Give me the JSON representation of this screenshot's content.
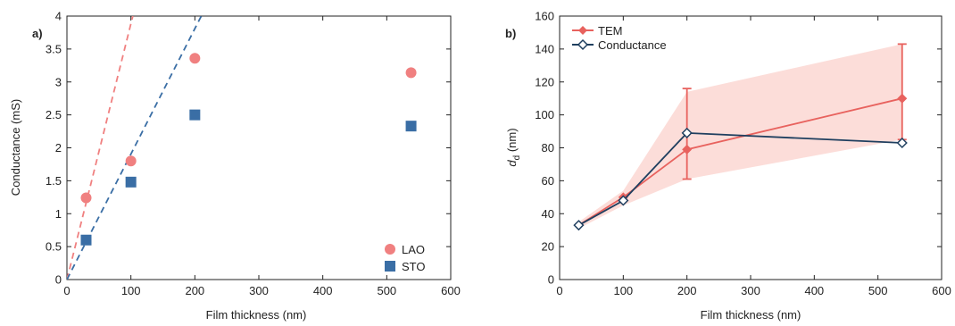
{
  "colors": {
    "lao": "#f08080",
    "sto": "#3a6ea5",
    "tem": "#e8625e",
    "conductance": "#1f3f5f",
    "band": "#fbd5d0"
  },
  "chart_data": [
    {
      "type": "scatter",
      "panel_label": "a)",
      "xlabel": "Film thickness (nm)",
      "ylabel": "Conductance (mS)",
      "xlim": [
        0,
        600
      ],
      "ylim": [
        0,
        4
      ],
      "xticks": [
        0,
        100,
        200,
        300,
        400,
        500,
        600
      ],
      "yticks": [
        0,
        0.5,
        1,
        1.5,
        2,
        2.5,
        3,
        3.5,
        4
      ],
      "ytick_labels": [
        "0",
        "0.5",
        "1",
        "1.5",
        "2",
        "2.5",
        "3",
        "3.5",
        "4"
      ],
      "legend_position": "bottom-right",
      "series": [
        {
          "name": "LAO",
          "marker": "circle",
          "x": [
            30,
            100,
            200,
            538
          ],
          "y": [
            1.24,
            1.8,
            3.36,
            3.14
          ]
        },
        {
          "name": "STO",
          "marker": "square",
          "x": [
            30,
            100,
            200,
            538
          ],
          "y": [
            0.6,
            1.48,
            2.5,
            2.33
          ]
        }
      ],
      "fit_lines": [
        {
          "series": "LAO",
          "style": "dashed",
          "x": [
            0,
            103
          ],
          "y": [
            0,
            4
          ]
        },
        {
          "series": "STO",
          "style": "dashed",
          "x": [
            0,
            210
          ],
          "y": [
            0,
            4
          ]
        }
      ]
    },
    {
      "type": "line",
      "panel_label": "b)",
      "xlabel": "Film thickness (nm)",
      "ylabel_main": "d",
      "ylabel_sub": "d",
      "ylabel_tail": " (nm)",
      "xlim": [
        0,
        600
      ],
      "ylim": [
        0,
        160
      ],
      "xticks": [
        0,
        100,
        200,
        300,
        400,
        500,
        600
      ],
      "yticks": [
        0,
        20,
        40,
        60,
        80,
        100,
        120,
        140,
        160
      ],
      "legend_position": "top-left",
      "series": [
        {
          "name": "TEM",
          "marker": "filled-diamond",
          "x": [
            30,
            100,
            200,
            538
          ],
          "y": [
            33,
            50,
            79,
            110
          ],
          "err_low": [
            33,
            50,
            61,
            85
          ],
          "err_high": [
            33,
            50,
            116,
            143
          ]
        },
        {
          "name": "Conductance",
          "marker": "open-diamond",
          "x": [
            30,
            100,
            200,
            538
          ],
          "y": [
            33,
            48,
            89,
            83
          ]
        }
      ],
      "shaded_band": {
        "x": [
          30,
          100,
          200,
          538
        ],
        "lower": [
          31,
          45,
          61,
          85
        ],
        "upper": [
          35,
          54,
          114,
          143
        ]
      }
    }
  ]
}
